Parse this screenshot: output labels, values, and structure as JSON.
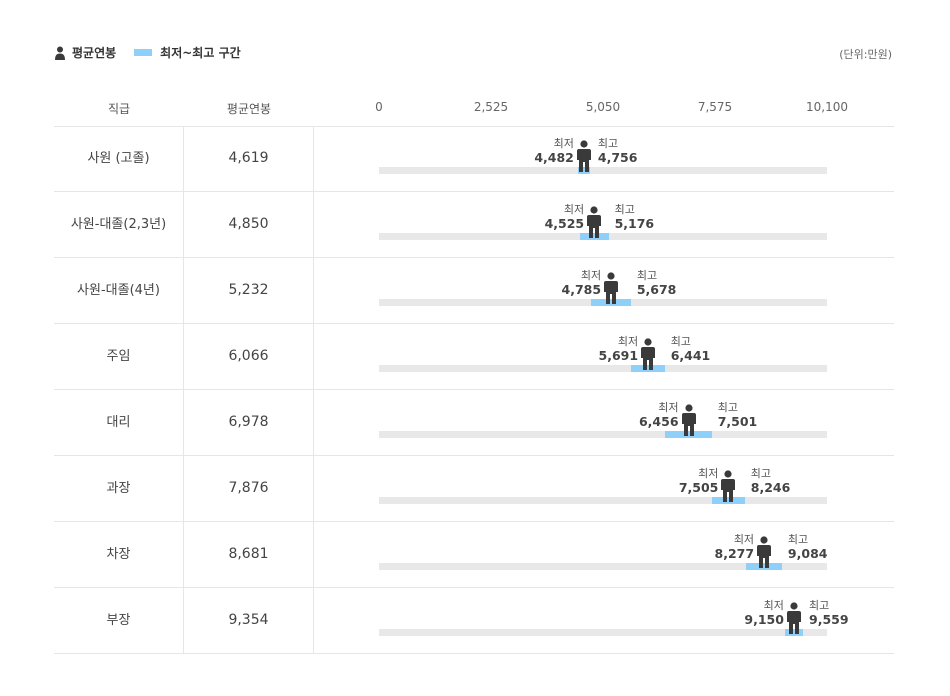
{
  "legend": {
    "avg_label": "평균연봉",
    "range_label": "최저~최고 구간",
    "avg_icon": "person-icon",
    "range_color": "#8fd0fb"
  },
  "unit_text": "(단위:만원)",
  "columns": {
    "rank": "직급",
    "avg": "평균연봉"
  },
  "labels": {
    "min": "최저",
    "max": "최고"
  },
  "chart_data": {
    "type": "range-dot",
    "x_ticks": [
      "0",
      "2,525",
      "5,050",
      "7,575",
      "10,100"
    ],
    "xlim": [
      0,
      10100
    ],
    "categories": [
      "사원 (고졸)",
      "사원-대졸(2,3년)",
      "사원-대졸(4년)",
      "주임",
      "대리",
      "과장",
      "차장",
      "부장"
    ],
    "rows": [
      {
        "rank": "사원 (고졸)",
        "avg_text": "4,619",
        "avg": 4619,
        "min_text": "4,482",
        "min": 4482,
        "max_text": "4,756",
        "max": 4756
      },
      {
        "rank": "사원-대졸(2,3년)",
        "avg_text": "4,850",
        "avg": 4850,
        "min_text": "4,525",
        "min": 4525,
        "max_text": "5,176",
        "max": 5176
      },
      {
        "rank": "사원-대졸(4년)",
        "avg_text": "5,232",
        "avg": 5232,
        "min_text": "4,785",
        "min": 4785,
        "max_text": "5,678",
        "max": 5678
      },
      {
        "rank": "주임",
        "avg_text": "6,066",
        "avg": 6066,
        "min_text": "5,691",
        "min": 5691,
        "max_text": "6,441",
        "max": 6441
      },
      {
        "rank": "대리",
        "avg_text": "6,978",
        "avg": 6978,
        "min_text": "6,456",
        "min": 6456,
        "max_text": "7,501",
        "max": 7501
      },
      {
        "rank": "과장",
        "avg_text": "7,876",
        "avg": 7876,
        "min_text": "7,505",
        "min": 7505,
        "max_text": "8,246",
        "max": 8246
      },
      {
        "rank": "차장",
        "avg_text": "8,681",
        "avg": 8681,
        "min_text": "8,277",
        "min": 8277,
        "max_text": "9,084",
        "max": 9084
      },
      {
        "rank": "부장",
        "avg_text": "9,354",
        "avg": 9354,
        "min_text": "9,150",
        "min": 9150,
        "max_text": "9,559",
        "max": 9559
      }
    ],
    "colors": {
      "track": "#e8e8e8",
      "range": "#8fd0fb",
      "figure": "#3a3a3a"
    }
  }
}
